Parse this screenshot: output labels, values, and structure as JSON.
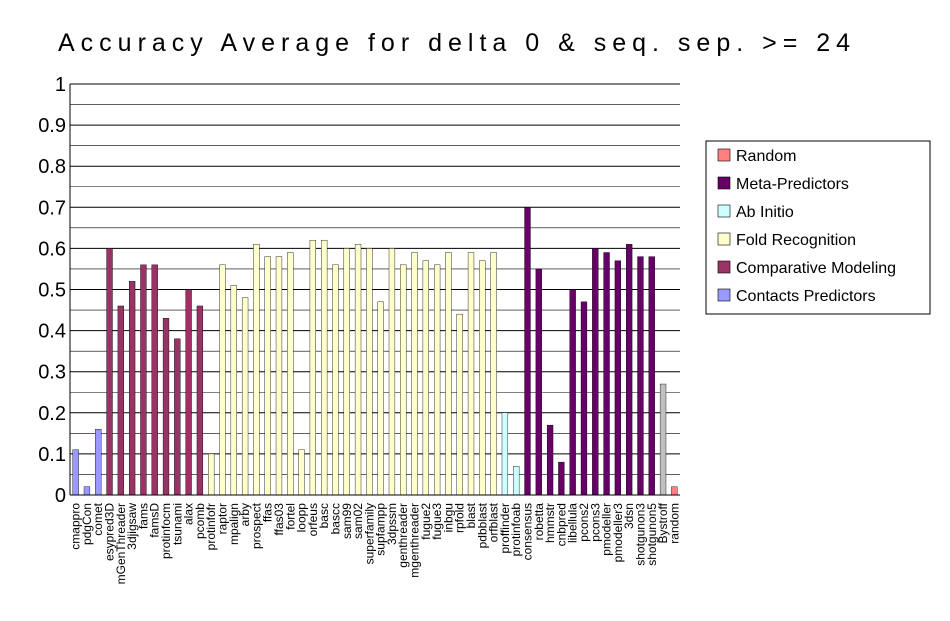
{
  "chart_data": {
    "type": "bar",
    "title": "Accuracy Average for delta 0 & seq. sep. >= 24",
    "xlabel": "",
    "ylabel": "",
    "ylim": [
      0,
      1
    ],
    "yticks": [
      "0",
      "0.1",
      "0.2",
      "0.3",
      "0.4",
      "0.5",
      "0.6",
      "0.7",
      "0.8",
      "0.9",
      "1"
    ],
    "grid": true,
    "legend_position": "right",
    "legend": [
      {
        "key": "random",
        "label": "Random",
        "color": "#ff8080"
      },
      {
        "key": "meta",
        "label": "Meta-Predictors",
        "color": "#660066"
      },
      {
        "key": "abinitio",
        "label": "Ab Initio",
        "color": "#ccffff"
      },
      {
        "key": "fold",
        "label": "Fold Recognition",
        "color": "#ffffcc"
      },
      {
        "key": "comparative",
        "label": "Comparative Modeling",
        "color": "#993366"
      },
      {
        "key": "contacts",
        "label": "Contacts Predictors",
        "color": "#9999ff"
      }
    ],
    "bars": [
      {
        "label": "cmappro",
        "value": 0.11,
        "group": "contacts"
      },
      {
        "label": "pdgCon",
        "value": 0.02,
        "group": "contacts"
      },
      {
        "label": "comet",
        "value": 0.16,
        "group": "contacts"
      },
      {
        "label": "esypred3D",
        "value": 0.6,
        "group": "comparative"
      },
      {
        "label": "mGenThreader",
        "value": 0.46,
        "group": "comparative"
      },
      {
        "label": "3djigsaw",
        "value": 0.52,
        "group": "comparative"
      },
      {
        "label": "fams",
        "value": 0.56,
        "group": "comparative"
      },
      {
        "label": "famsD",
        "value": 0.56,
        "group": "comparative"
      },
      {
        "label": "protinfocm",
        "value": 0.43,
        "group": "comparative"
      },
      {
        "label": "tsunami",
        "value": 0.38,
        "group": "comparative"
      },
      {
        "label": "alax",
        "value": 0.5,
        "group": "comparative"
      },
      {
        "label": "pcomb",
        "value": 0.46,
        "group": "comparative"
      },
      {
        "label": "protinfofr",
        "value": 0.1,
        "group": "fold"
      },
      {
        "label": "raptor",
        "value": 0.56,
        "group": "fold"
      },
      {
        "label": "mpalign",
        "value": 0.51,
        "group": "fold"
      },
      {
        "label": "arby",
        "value": 0.48,
        "group": "fold"
      },
      {
        "label": "prospect",
        "value": 0.61,
        "group": "fold"
      },
      {
        "label": "ffas",
        "value": 0.58,
        "group": "fold"
      },
      {
        "label": "ffas03",
        "value": 0.58,
        "group": "fold"
      },
      {
        "label": "fortel",
        "value": 0.59,
        "group": "fold"
      },
      {
        "label": "loopp",
        "value": 0.11,
        "group": "fold"
      },
      {
        "label": "orfeus",
        "value": 0.62,
        "group": "fold"
      },
      {
        "label": "basc",
        "value": 0.62,
        "group": "fold"
      },
      {
        "label": "bascc",
        "value": 0.56,
        "group": "fold"
      },
      {
        "label": "sam99",
        "value": 0.6,
        "group": "fold"
      },
      {
        "label": "sam02",
        "value": 0.61,
        "group": "fold"
      },
      {
        "label": "superfamily",
        "value": 0.6,
        "group": "fold"
      },
      {
        "label": "supfampp",
        "value": 0.47,
        "group": "fold"
      },
      {
        "label": "3dpssm",
        "value": 0.6,
        "group": "fold"
      },
      {
        "label": "genthreader",
        "value": 0.56,
        "group": "fold"
      },
      {
        "label": "mgenthreader",
        "value": 0.59,
        "group": "fold"
      },
      {
        "label": "fugue2",
        "value": 0.57,
        "group": "fold"
      },
      {
        "label": "fugue3",
        "value": 0.56,
        "group": "fold"
      },
      {
        "label": "inbgu",
        "value": 0.59,
        "group": "fold"
      },
      {
        "label": "rpfold",
        "value": 0.44,
        "group": "fold"
      },
      {
        "label": "blast",
        "value": 0.59,
        "group": "fold"
      },
      {
        "label": "pdbblast",
        "value": 0.57,
        "group": "fold"
      },
      {
        "label": "orfblast",
        "value": 0.59,
        "group": "fold"
      },
      {
        "label": "proffinder",
        "value": 0.2,
        "group": "abinitio"
      },
      {
        "label": "protinfoab",
        "value": 0.07,
        "group": "abinitio"
      },
      {
        "label": "consensus",
        "value": 0.7,
        "group": "meta"
      },
      {
        "label": "robetta",
        "value": 0.55,
        "group": "meta"
      },
      {
        "label": "hmmstr",
        "value": 0.17,
        "group": "meta"
      },
      {
        "label": "cnbpred",
        "value": 0.08,
        "group": "meta"
      },
      {
        "label": "libellula",
        "value": 0.5,
        "group": "meta"
      },
      {
        "label": "pcons2",
        "value": 0.47,
        "group": "meta"
      },
      {
        "label": "pcons3",
        "value": 0.6,
        "group": "meta"
      },
      {
        "label": "pmodeller",
        "value": 0.59,
        "group": "meta"
      },
      {
        "label": "pmodeller3",
        "value": 0.57,
        "group": "meta"
      },
      {
        "label": "3dsn",
        "value": 0.61,
        "group": "meta"
      },
      {
        "label": "shotgunon3",
        "value": 0.58,
        "group": "meta"
      },
      {
        "label": "shotgunon5",
        "value": 0.58,
        "group": "meta"
      },
      {
        "label": "Bystroff",
        "value": 0.27,
        "group": "other"
      },
      {
        "label": "random",
        "value": 0.02,
        "group": "random"
      }
    ],
    "colors": {
      "random": "#ff8080",
      "meta": "#660066",
      "abinitio": "#ccffff",
      "fold": "#ffffcc",
      "comparative": "#993366",
      "contacts": "#9999ff",
      "other": "#c0c0c0"
    }
  }
}
